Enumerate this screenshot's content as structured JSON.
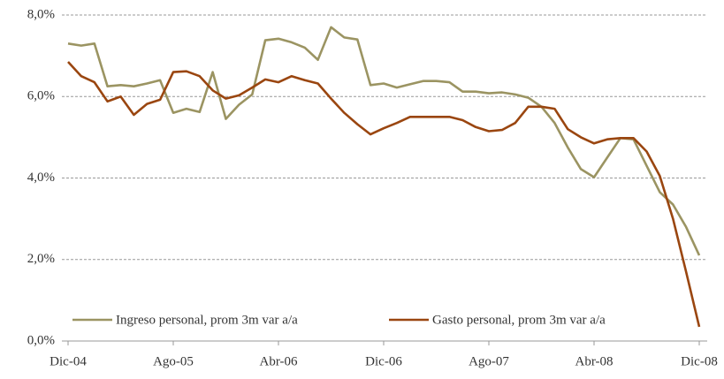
{
  "chart_data": {
    "type": "line",
    "categories": [
      "Dic-04",
      null,
      null,
      null,
      null,
      null,
      null,
      null,
      "Ago-05",
      null,
      null,
      null,
      null,
      null,
      null,
      null,
      "Abr-06",
      null,
      null,
      null,
      null,
      null,
      null,
      null,
      "Dic-06",
      null,
      null,
      null,
      null,
      null,
      null,
      null,
      "Ago-07",
      null,
      null,
      null,
      null,
      null,
      null,
      null,
      "Abr-08",
      null,
      null,
      null,
      null,
      null,
      null,
      null,
      "Dic-08"
    ],
    "series": [
      {
        "name": "Ingreso personal, prom 3m var a/a",
        "color": "#9b9462",
        "values": [
          7.3,
          7.25,
          7.3,
          6.25,
          6.28,
          6.25,
          6.32,
          6.4,
          5.6,
          5.7,
          5.62,
          6.6,
          5.45,
          5.8,
          6.05,
          7.38,
          7.42,
          7.33,
          7.2,
          6.9,
          7.7,
          7.45,
          7.4,
          6.28,
          6.32,
          6.22,
          6.3,
          6.38,
          6.38,
          6.35,
          6.12,
          6.12,
          6.08,
          6.1,
          6.05,
          5.97,
          5.75,
          5.35,
          4.75,
          4.22,
          4.02,
          4.5,
          4.98,
          4.95,
          4.3,
          3.65,
          3.35,
          2.8,
          2.1
        ]
      },
      {
        "name": "Gasto personal, prom 3m var a/a",
        "color": "#9a4610",
        "values": [
          6.85,
          6.5,
          6.35,
          5.88,
          6.0,
          5.55,
          5.82,
          5.92,
          6.6,
          6.62,
          6.5,
          6.15,
          5.95,
          6.03,
          6.22,
          6.42,
          6.35,
          6.5,
          6.4,
          6.32,
          5.95,
          5.6,
          5.32,
          5.07,
          5.22,
          5.35,
          5.5,
          5.5,
          5.5,
          5.5,
          5.42,
          5.25,
          5.15,
          5.18,
          5.35,
          5.75,
          5.75,
          5.7,
          5.2,
          5.0,
          4.85,
          4.95,
          4.98,
          4.98,
          4.65,
          4.05,
          3.0,
          1.7,
          0.35
        ]
      }
    ],
    "ylim": [
      0,
      8
    ],
    "yticks": [
      {
        "value": 0,
        "label": "0,0%"
      },
      {
        "value": 2,
        "label": "2,0%"
      },
      {
        "value": 4,
        "label": "4,0%"
      },
      {
        "value": 6,
        "label": "6,0%"
      },
      {
        "value": 8,
        "label": "8,0%"
      }
    ],
    "grid": true
  }
}
